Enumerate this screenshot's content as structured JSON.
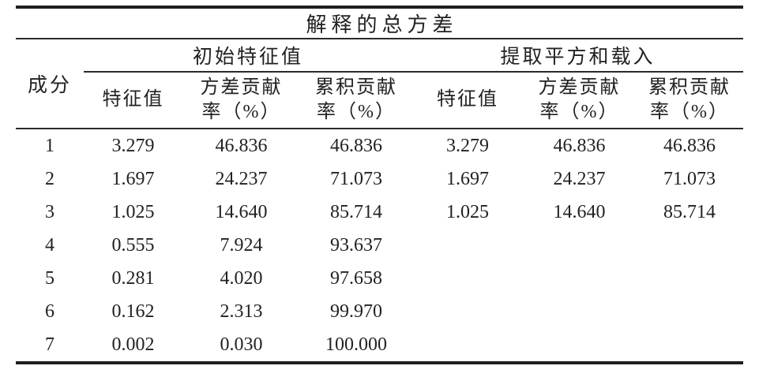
{
  "table": {
    "title": "解释的总方差",
    "component_header": "成分",
    "group_headers": [
      "初始特征值",
      "提取平方和载入"
    ],
    "subheaders": [
      "特征值",
      "方差贡献\n率（%）",
      "累积贡献\n率（%）",
      "特征值",
      "方差贡献\n率（%）",
      "累积贡献\n率（%）"
    ],
    "rows": [
      {
        "cells": [
          "1",
          "3.279",
          "46.836",
          "46.836",
          "3.279",
          "46.836",
          "46.836"
        ]
      },
      {
        "cells": [
          "2",
          "1.697",
          "24.237",
          "71.073",
          "1.697",
          "24.237",
          "71.073"
        ]
      },
      {
        "cells": [
          "3",
          "1.025",
          "14.640",
          "85.714",
          "1.025",
          "14.640",
          "85.714"
        ]
      },
      {
        "cells": [
          "4",
          "0.555",
          "7.924",
          "93.637",
          "",
          "",
          ""
        ]
      },
      {
        "cells": [
          "5",
          "0.281",
          "4.020",
          "97.658",
          "",
          "",
          ""
        ]
      },
      {
        "cells": [
          "6",
          "0.162",
          "2.313",
          "99.970",
          "",
          "",
          ""
        ]
      },
      {
        "cells": [
          "7",
          "0.002",
          "0.030",
          "100.000",
          "",
          "",
          ""
        ]
      }
    ],
    "colors": {
      "rule": "#1f1f1f",
      "text": "#222222",
      "background": "#ffffff"
    }
  }
}
